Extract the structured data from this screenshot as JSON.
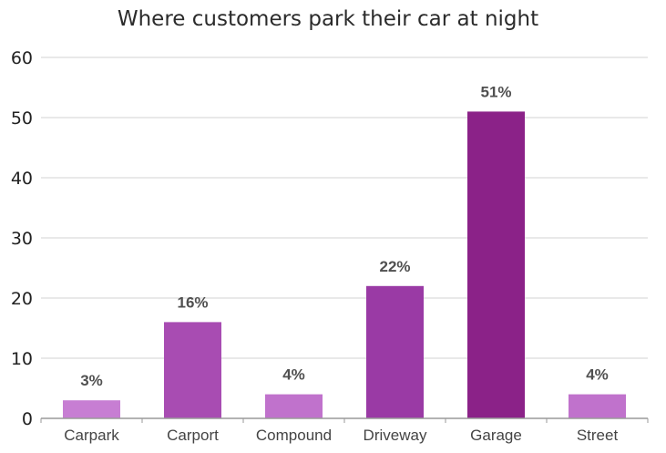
{
  "chart_data": {
    "type": "bar",
    "title": "Where customers park their car at night",
    "xlabel": "",
    "ylabel": "",
    "categories": [
      "Carpark",
      "Carport",
      "Compound",
      "Driveway",
      "Garage",
      "Street"
    ],
    "values": [
      3,
      16,
      4,
      22,
      51,
      4
    ],
    "data_labels": [
      "3%",
      "16%",
      "4%",
      "22%",
      "51%",
      "4%"
    ],
    "bar_colors": [
      "#c77ed3",
      "#a84cb2",
      "#c072cc",
      "#9a3aa5",
      "#8b2288",
      "#c072cc"
    ],
    "ylim": [
      0,
      60
    ],
    "yticks": [
      "0",
      "10",
      "20",
      "30",
      "40",
      "50",
      "60"
    ],
    "grid": true,
    "legend": "none"
  },
  "colors": {
    "grid": "#e2e2e2",
    "axis": "#9a9a9a",
    "background": "#ffffff"
  }
}
